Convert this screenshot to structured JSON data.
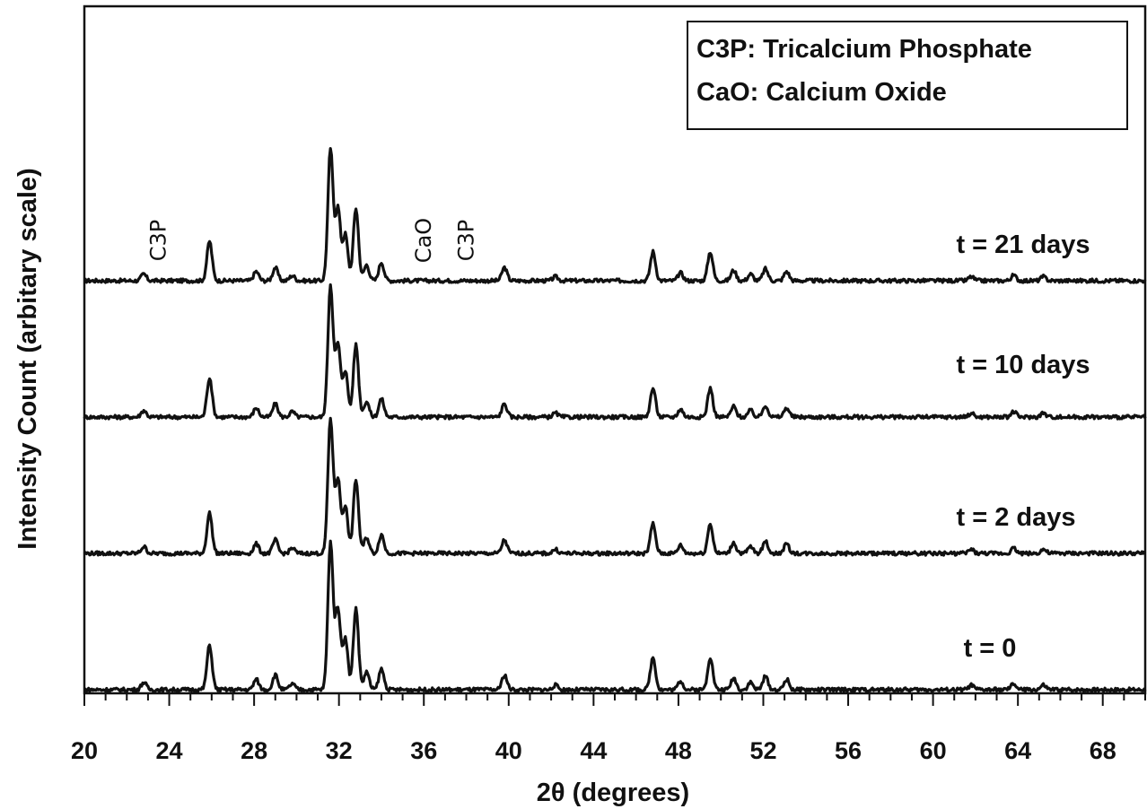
{
  "chart_data": {
    "type": "line",
    "title": "",
    "xlabel": "2θ (degrees)",
    "ylabel": "Intensity Count (arbitary scale)",
    "xlim": [
      20,
      70
    ],
    "xticks": [
      "20",
      "24",
      "28",
      "32",
      "36",
      "40",
      "44",
      "48",
      "52",
      "56",
      "60",
      "64",
      "68"
    ],
    "grid": false,
    "legend": {
      "placement": "top-right",
      "entries": [
        "C3P: Tricalcium Phosphate",
        "CaO: Calcium Oxide"
      ]
    },
    "peak_annotations": [
      {
        "text": "C3P",
        "x": 23.5
      },
      {
        "text": "CaO",
        "x": 36.0
      },
      {
        "text": "C3P",
        "x": 38.0
      }
    ],
    "peaks": [
      {
        "x": 22.8,
        "h": 0.05
      },
      {
        "x": 25.9,
        "h": 0.3
      },
      {
        "x": 28.1,
        "h": 0.07
      },
      {
        "x": 29.0,
        "h": 0.1
      },
      {
        "x": 29.8,
        "h": 0.04
      },
      {
        "x": 31.6,
        "h": 1.0
      },
      {
        "x": 31.95,
        "h": 0.55
      },
      {
        "x": 32.3,
        "h": 0.35
      },
      {
        "x": 32.8,
        "h": 0.55
      },
      {
        "x": 33.3,
        "h": 0.12
      },
      {
        "x": 34.0,
        "h": 0.14
      },
      {
        "x": 39.8,
        "h": 0.1
      },
      {
        "x": 42.2,
        "h": 0.03
      },
      {
        "x": 46.8,
        "h": 0.22
      },
      {
        "x": 48.1,
        "h": 0.06
      },
      {
        "x": 49.5,
        "h": 0.22
      },
      {
        "x": 50.6,
        "h": 0.08
      },
      {
        "x": 51.4,
        "h": 0.05
      },
      {
        "x": 52.1,
        "h": 0.09
      },
      {
        "x": 53.1,
        "h": 0.07
      },
      {
        "x": 61.8,
        "h": 0.03
      },
      {
        "x": 63.8,
        "h": 0.04
      },
      {
        "x": 65.2,
        "h": 0.03
      }
    ],
    "series": [
      {
        "name": "t = 21 days",
        "scale": 0.98,
        "offset": 3
      },
      {
        "name": "t = 10 days",
        "scale": 0.98,
        "offset": 2
      },
      {
        "name": "t = 2 days",
        "scale": 1.0,
        "offset": 1
      },
      {
        "name": "t = 0",
        "scale": 1.1,
        "offset": 0
      }
    ]
  }
}
